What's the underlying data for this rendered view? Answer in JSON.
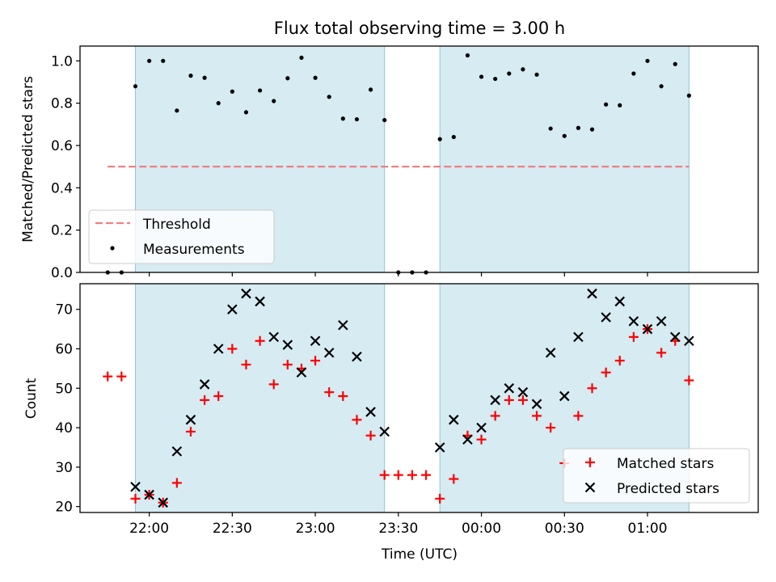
{
  "chart_data": [
    {
      "type": "scatter",
      "title": "Flux total observing time = 3.00 h",
      "ylabel": "Matched/Predicted stars",
      "xlabel": "",
      "ylim": [
        0,
        1.07
      ],
      "yticks": [
        0.0,
        0.2,
        0.4,
        0.6,
        0.8,
        1.0
      ],
      "ytick_labels": [
        "0.0",
        "0.2",
        "0.4",
        "0.6",
        "0.8",
        "1.0"
      ],
      "xlim": [
        "21:35",
        "01:40"
      ],
      "shaded_intervals": [
        [
          "21:55",
          "23:25"
        ],
        [
          "23:45",
          "01:15"
        ]
      ],
      "grid": false,
      "legend_position": "lower-left",
      "threshold": {
        "name": "Threshold",
        "value": 0.5,
        "x_start": "21:45",
        "x_end": "01:15",
        "color": "#f08080"
      },
      "series": [
        {
          "name": "Measurements",
          "color": "#000000",
          "points": [
            [
              "21:45",
              0.0
            ],
            [
              "21:50",
              0.0
            ],
            [
              "21:55",
              0.88
            ],
            [
              "22:00",
              1.0
            ],
            [
              "22:05",
              1.0
            ],
            [
              "22:10",
              0.765
            ],
            [
              "22:15",
              0.93
            ],
            [
              "22:20",
              0.92
            ],
            [
              "22:25",
              0.8
            ],
            [
              "22:30",
              0.855
            ],
            [
              "22:35",
              0.757
            ],
            [
              "22:40",
              0.86
            ],
            [
              "22:45",
              0.81
            ],
            [
              "22:50",
              0.918
            ],
            [
              "22:55",
              1.015
            ],
            [
              "23:00",
              0.92
            ],
            [
              "23:05",
              0.83
            ],
            [
              "23:10",
              0.727
            ],
            [
              "23:15",
              0.724
            ],
            [
              "23:20",
              0.864
            ],
            [
              "23:25",
              0.72
            ],
            [
              "23:30",
              0.0
            ],
            [
              "23:35",
              0.0
            ],
            [
              "23:40",
              0.0
            ],
            [
              "23:45",
              0.63
            ],
            [
              "23:50",
              0.64
            ],
            [
              "23:55",
              1.026
            ],
            [
              "00:00",
              0.925
            ],
            [
              "00:05",
              0.915
            ],
            [
              "00:10",
              0.94
            ],
            [
              "00:15",
              0.96
            ],
            [
              "00:20",
              0.935
            ],
            [
              "00:25",
              0.68
            ],
            [
              "00:30",
              0.645
            ],
            [
              "00:35",
              0.683
            ],
            [
              "00:40",
              0.676
            ],
            [
              "00:45",
              0.794
            ],
            [
              "00:50",
              0.79
            ],
            [
              "00:55",
              0.94
            ],
            [
              "01:00",
              1.0
            ],
            [
              "01:05",
              0.88
            ],
            [
              "01:10",
              0.985
            ],
            [
              "01:15",
              0.836
            ]
          ]
        }
      ]
    },
    {
      "type": "scatter",
      "title": "",
      "ylabel": "Count",
      "xlabel": "Time (UTC)",
      "ylim": [
        18.5,
        76.5
      ],
      "yticks": [
        20,
        30,
        40,
        50,
        60,
        70
      ],
      "ytick_labels": [
        "20",
        "30",
        "40",
        "50",
        "60",
        "70"
      ],
      "xlim": [
        "21:35",
        "01:40"
      ],
      "xticks": [
        "22:00",
        "22:30",
        "23:00",
        "23:30",
        "00:00",
        "00:30",
        "01:00"
      ],
      "xtick_labels": [
        "22:00",
        "22:30",
        "23:00",
        "23:30",
        "00:00",
        "00:30",
        "01:00"
      ],
      "shaded_intervals": [
        [
          "21:55",
          "23:25"
        ],
        [
          "23:45",
          "01:15"
        ]
      ],
      "grid": false,
      "legend_position": "lower-right",
      "series": [
        {
          "name": "Matched stars",
          "marker": "plus",
          "color": "#ff0000",
          "points": [
            [
              "21:45",
              53
            ],
            [
              "21:50",
              53
            ],
            [
              "21:55",
              22
            ],
            [
              "22:00",
              23
            ],
            [
              "22:05",
              21
            ],
            [
              "22:10",
              26
            ],
            [
              "22:15",
              39
            ],
            [
              "22:20",
              47
            ],
            [
              "22:25",
              48
            ],
            [
              "22:30",
              60
            ],
            [
              "22:35",
              56
            ],
            [
              "22:40",
              62
            ],
            [
              "22:45",
              51
            ],
            [
              "22:50",
              56
            ],
            [
              "22:55",
              55
            ],
            [
              "23:00",
              57
            ],
            [
              "23:05",
              49
            ],
            [
              "23:10",
              48
            ],
            [
              "23:15",
              42
            ],
            [
              "23:20",
              38
            ],
            [
              "23:25",
              28
            ],
            [
              "23:30",
              28
            ],
            [
              "23:35",
              28
            ],
            [
              "23:40",
              28
            ],
            [
              "23:45",
              22
            ],
            [
              "23:50",
              27
            ],
            [
              "23:55",
              38
            ],
            [
              "00:00",
              37
            ],
            [
              "00:05",
              43
            ],
            [
              "00:10",
              47
            ],
            [
              "00:15",
              47
            ],
            [
              "00:20",
              43
            ],
            [
              "00:25",
              40
            ],
            [
              "00:30",
              31
            ],
            [
              "00:35",
              43
            ],
            [
              "00:40",
              50
            ],
            [
              "00:45",
              54
            ],
            [
              "00:50",
              57
            ],
            [
              "00:55",
              63
            ],
            [
              "01:00",
              65
            ],
            [
              "01:05",
              59
            ],
            [
              "01:10",
              62
            ],
            [
              "01:15",
              52
            ]
          ]
        },
        {
          "name": "Predicted stars",
          "marker": "x",
          "color": "#000000",
          "points": [
            [
              "21:55",
              25
            ],
            [
              "22:00",
              23
            ],
            [
              "22:05",
              21
            ],
            [
              "22:10",
              34
            ],
            [
              "22:15",
              42
            ],
            [
              "22:20",
              51
            ],
            [
              "22:25",
              60
            ],
            [
              "22:30",
              70
            ],
            [
              "22:35",
              74
            ],
            [
              "22:40",
              72
            ],
            [
              "22:45",
              63
            ],
            [
              "22:50",
              61
            ],
            [
              "22:55",
              54
            ],
            [
              "23:00",
              62
            ],
            [
              "23:05",
              59
            ],
            [
              "23:10",
              66
            ],
            [
              "23:15",
              58
            ],
            [
              "23:20",
              44
            ],
            [
              "23:25",
              39
            ],
            [
              "23:45",
              35
            ],
            [
              "23:50",
              42
            ],
            [
              "23:55",
              37
            ],
            [
              "00:00",
              40
            ],
            [
              "00:05",
              47
            ],
            [
              "00:10",
              50
            ],
            [
              "00:15",
              49
            ],
            [
              "00:20",
              46
            ],
            [
              "00:25",
              59
            ],
            [
              "00:30",
              48
            ],
            [
              "00:35",
              63
            ],
            [
              "00:40",
              74
            ],
            [
              "00:45",
              68
            ],
            [
              "00:50",
              72
            ],
            [
              "00:55",
              67
            ],
            [
              "01:00",
              65
            ],
            [
              "01:05",
              67
            ],
            [
              "01:10",
              63
            ],
            [
              "01:15",
              62
            ]
          ]
        }
      ]
    }
  ]
}
